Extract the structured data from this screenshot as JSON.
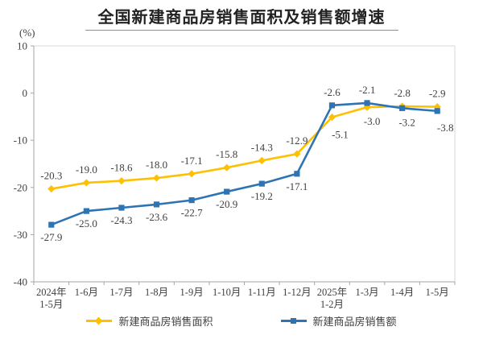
{
  "title": "全国新建商品房销售面积及销售额增速",
  "unit_label": "(%)",
  "colors": {
    "series_area": "#FFC000",
    "series_amount": "#2E74B5",
    "title_text": "#222222",
    "title_underline": "#dd7070",
    "axis_line": "#a6a6a6",
    "plot_border": "#d9d9d9",
    "data_label_text": "#404040",
    "axis_tick_text": "#404040",
    "background": "#ffffff"
  },
  "chart_data": {
    "type": "line",
    "title": "全国新建商品房销售面积及销售额增速",
    "ylabel": "(%)",
    "xlabel": "",
    "ylim": [
      -40,
      10
    ],
    "ytick_labels": [
      "10",
      "0",
      "-10",
      "-20",
      "-30",
      "-40"
    ],
    "yticks": [
      10,
      0,
      -10,
      -20,
      -30,
      -40
    ],
    "grid": false,
    "legend_position": "bottom",
    "categories": [
      "2024年\n1-5月",
      "1-6月",
      "1-7月",
      "1-8月",
      "1-9月",
      "1-10月",
      "1-11月",
      "1-12月",
      "2025年\n1-2月",
      "1-3月",
      "1-4月",
      "1-5月"
    ],
    "series": [
      {
        "name": "新建商品房销售面积",
        "color": "#FFC000",
        "marker": "diamond",
        "values": [
          -20.3,
          -19.0,
          -18.6,
          -18.0,
          -17.1,
          -15.8,
          -14.3,
          -12.9,
          -5.1,
          -3.0,
          -2.8,
          -2.9
        ],
        "labels": [
          "-20.3",
          "-19.0",
          "-18.6",
          "-18.0",
          "-17.1",
          "-15.8",
          "-14.3",
          "-12.9",
          "-5.1",
          "-3.0",
          "-2.8",
          "-2.9"
        ],
        "label_positions": [
          "above",
          "above",
          "above",
          "above",
          "above",
          "above",
          "above",
          "above",
          "below",
          "below",
          "above",
          "above"
        ]
      },
      {
        "name": "新建商品房销售额",
        "color": "#2E74B5",
        "marker": "square",
        "values": [
          -27.9,
          -25.0,
          -24.3,
          -23.6,
          -22.7,
          -20.9,
          -19.2,
          -17.1,
          -2.6,
          -2.1,
          -3.2,
          -3.8
        ],
        "labels": [
          "-27.9",
          "-25.0",
          "-24.3",
          "-23.6",
          "-22.7",
          "-20.9",
          "-19.2",
          "-17.1",
          "-2.6",
          "-2.1",
          "-3.2",
          "-3.8"
        ],
        "label_positions": [
          "below",
          "below",
          "below",
          "below",
          "below",
          "below",
          "below",
          "below",
          "above",
          "above",
          "below",
          "below"
        ]
      }
    ]
  }
}
